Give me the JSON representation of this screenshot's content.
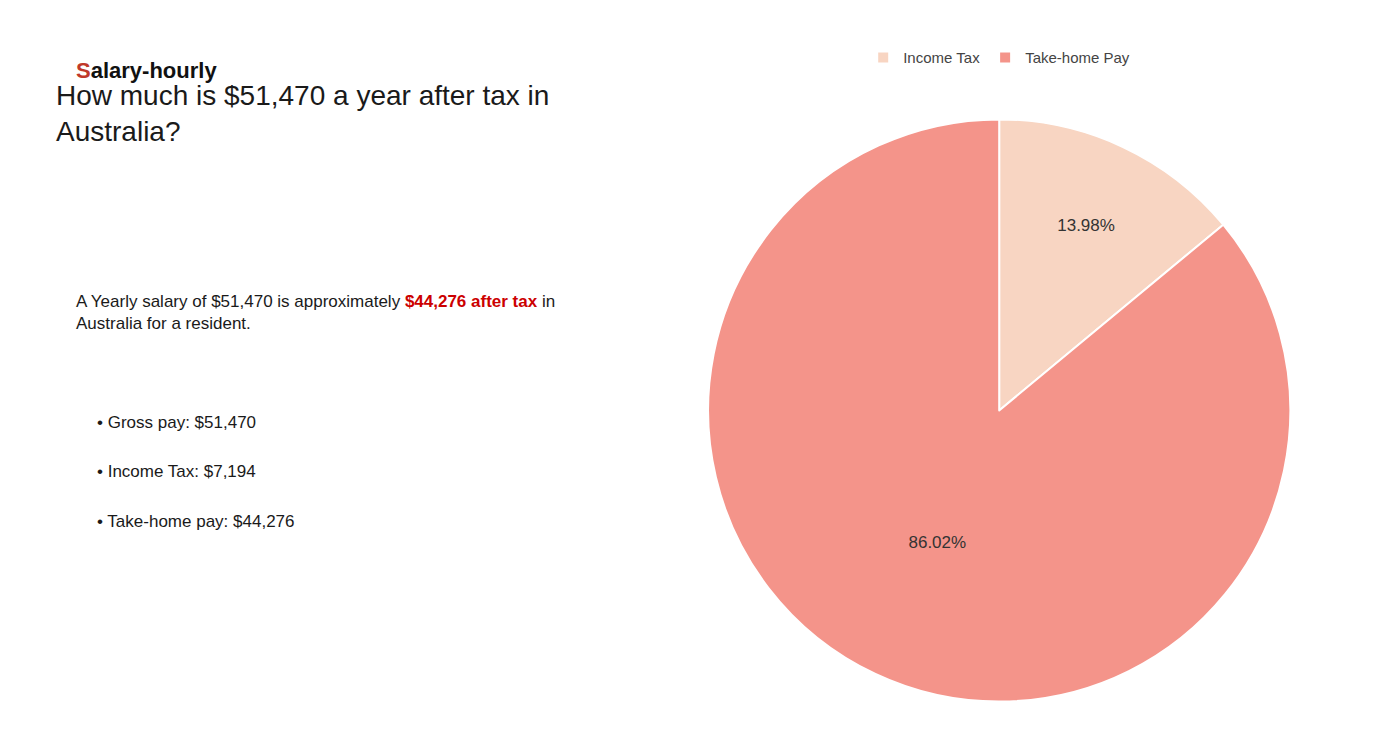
{
  "chart_data": {
    "type": "pie",
    "title": "How much is $51,470 a year after tax in\nAustralia?",
    "categories": [
      "Income Tax",
      "Take-home Pay"
    ],
    "values": [
      13.98,
      86.02
    ],
    "value_labels": [
      "13.98%",
      "86.02%"
    ],
    "colors": [
      "#f8d5c2",
      "#f4948a"
    ],
    "data_labels": true,
    "legend": "top",
    "annotations": [
      [
        {
          "text": "S",
          "color": "#c0392b"
        },
        {
          "text": "alary-hourly",
          "color": "#111111"
        }
      ],
      [
        {
          "text": "A Yearly salary of $51,470 is approximately ",
          "color": "#1a1a1a"
        },
        {
          "text": "$44,276 after tax",
          "color": "#cc0000"
        },
        {
          "text": " in\nAustralia for a resident.",
          "color": "#1a1a1a"
        }
      ],
      [
        {
          "text": "• Gross pay: $51,470",
          "color": "#1a1a1a"
        }
      ],
      [
        {
          "text": "• Income Tax: $7,194",
          "color": "#1a1a1a"
        }
      ],
      [
        {
          "text": "• Take-home pay: $44,276",
          "color": "#1a1a1a"
        }
      ]
    ]
  }
}
